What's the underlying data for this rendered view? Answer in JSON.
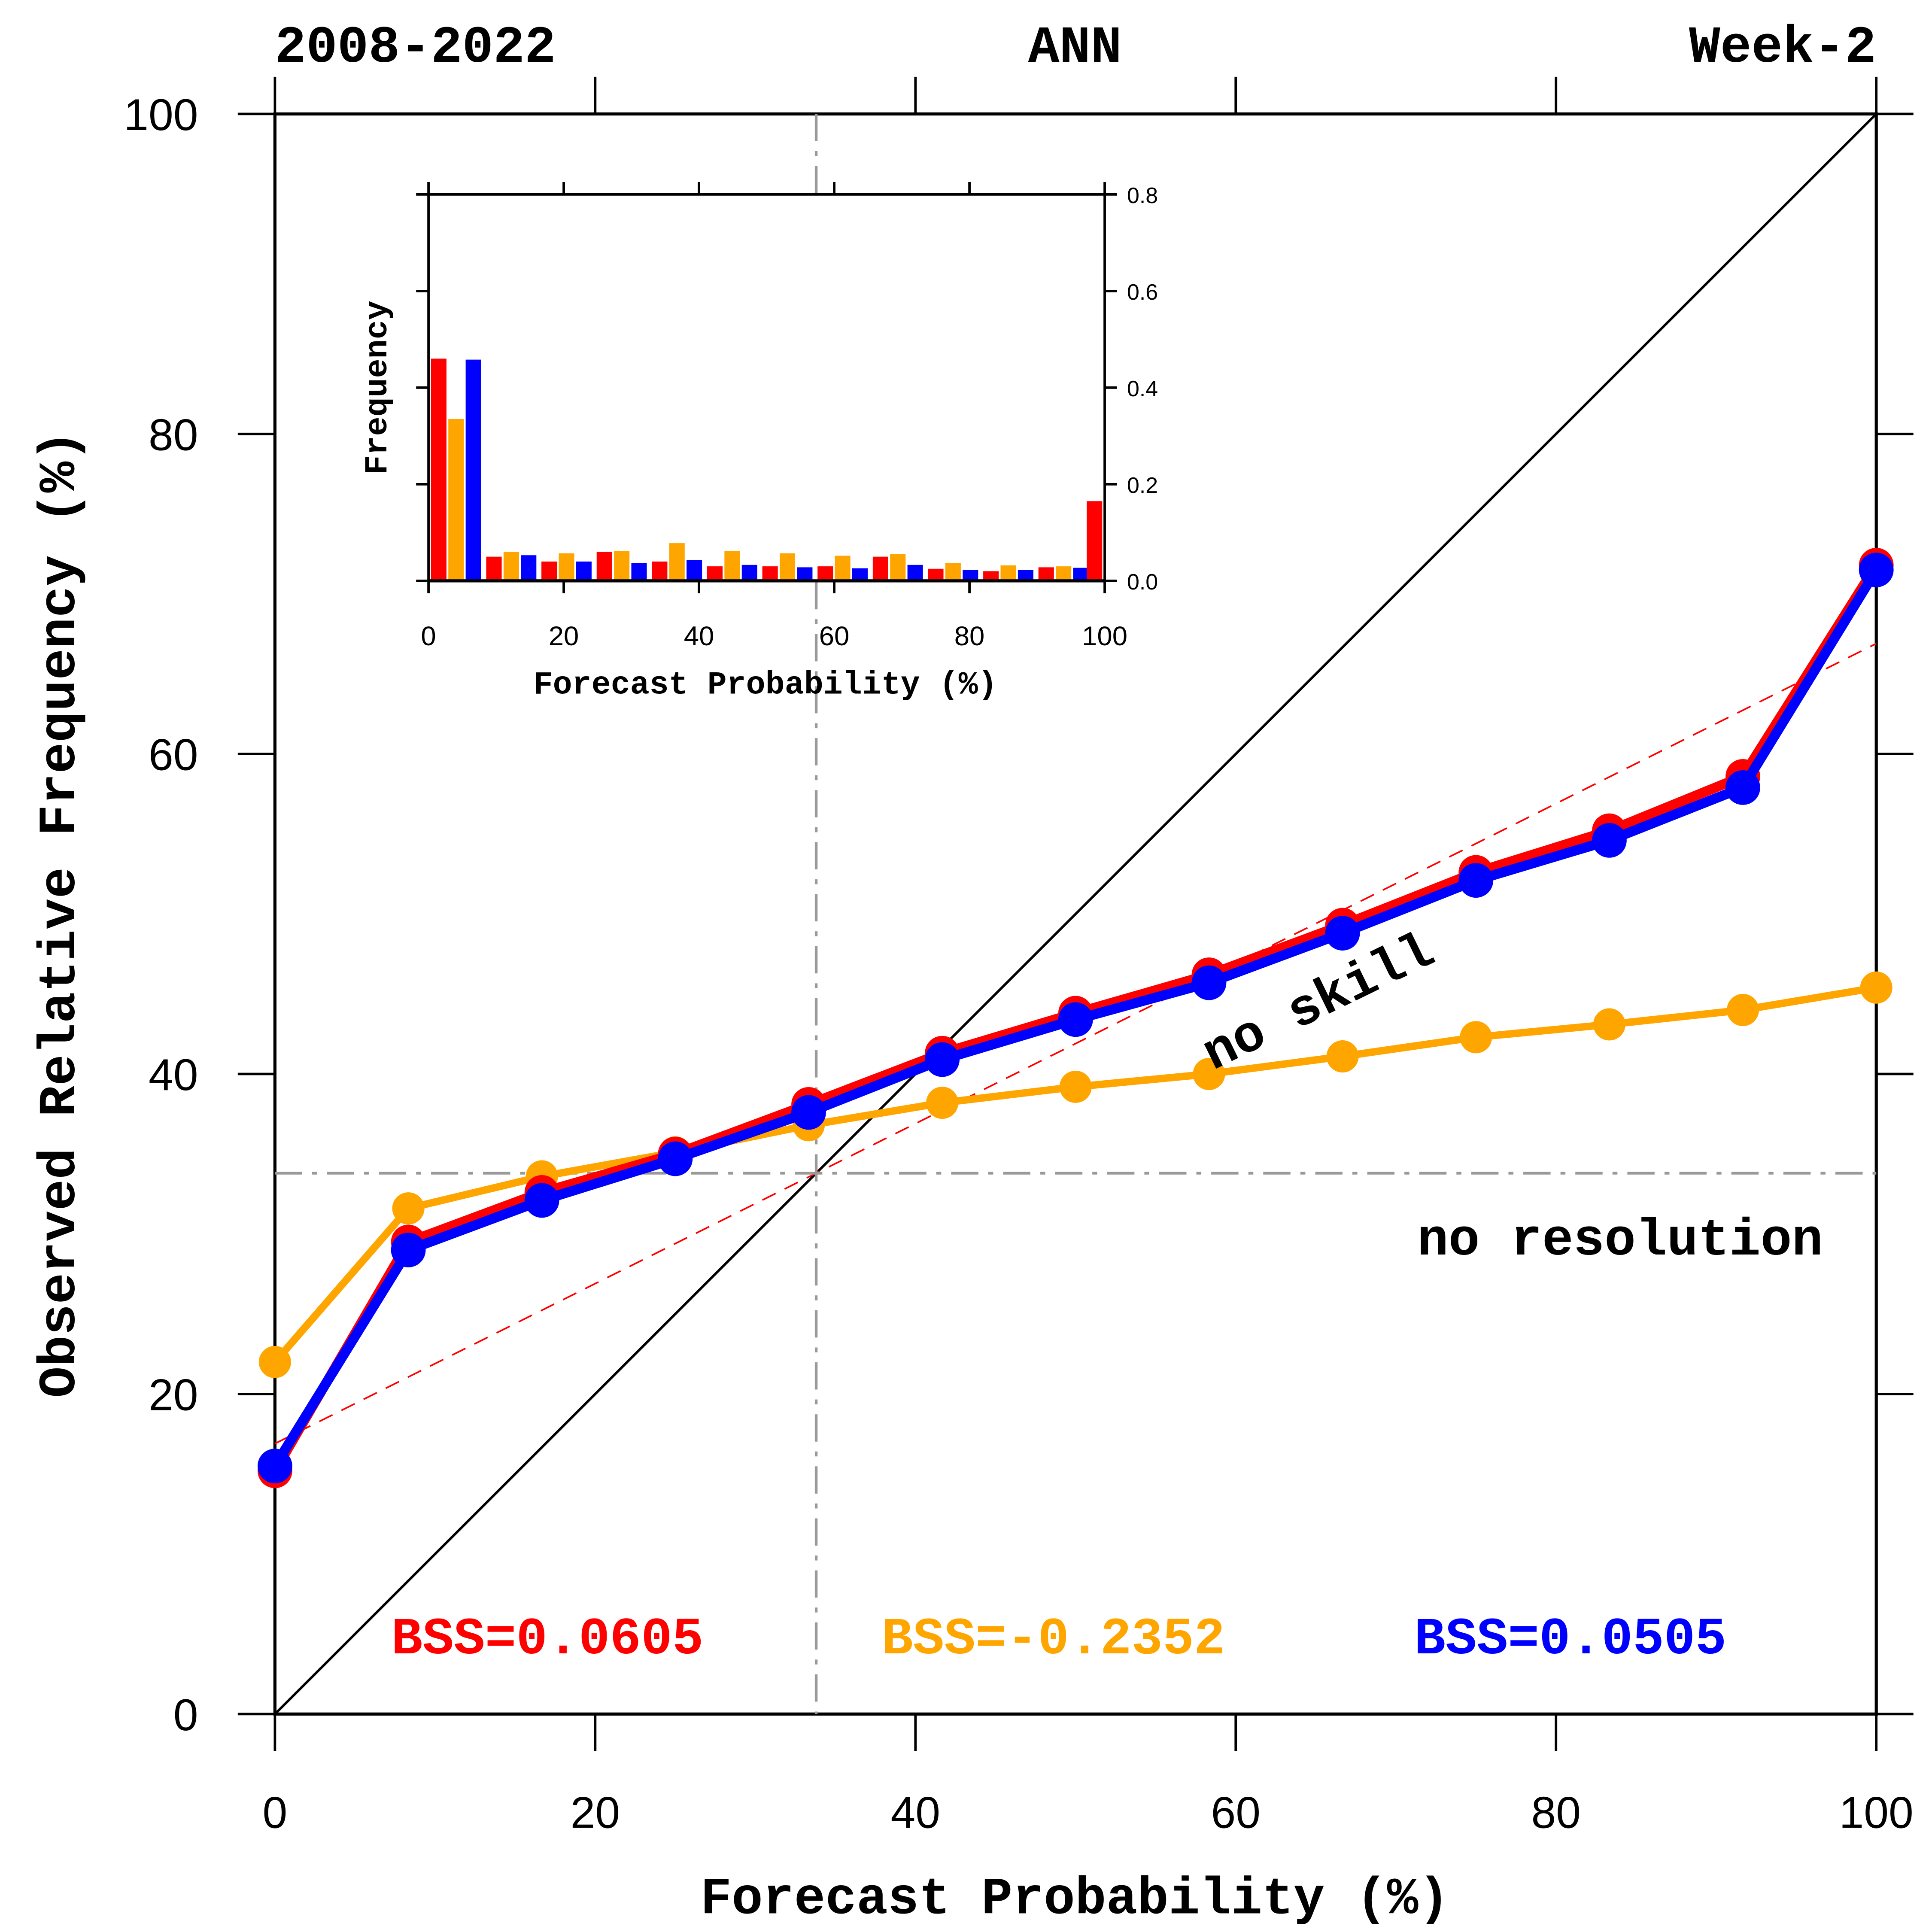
{
  "header": {
    "left": "2008-2022",
    "center": "ANN",
    "right": "Week-2"
  },
  "chart_data": [
    {
      "type": "line",
      "title": "Reliability Diagram",
      "xlabel": "Forecast Probability (%)",
      "ylabel": "Observed Relative Frequency (%)",
      "xlim": [
        0,
        100
      ],
      "ylim": [
        0,
        100
      ],
      "xticks": [
        "0",
        "20",
        "40",
        "60",
        "80",
        "100"
      ],
      "yticks": [
        "0",
        "20",
        "40",
        "60",
        "80",
        "100"
      ],
      "x": [
        0,
        8.33,
        16.67,
        25,
        33.33,
        41.67,
        50,
        58.33,
        66.67,
        75,
        83.33,
        91.67,
        100
      ],
      "series": [
        {
          "name": "red",
          "color": "#ff0000",
          "bss_label": "BSS=0.0605",
          "values": [
            15.2,
            29.5,
            32.6,
            35.0,
            38.1,
            41.3,
            43.8,
            46.2,
            49.3,
            52.6,
            55.2,
            58.6,
            71.8
          ]
        },
        {
          "name": "orange",
          "color": "#ffa500",
          "bss_label": "BSS=-0.2352",
          "values": [
            22.0,
            31.6,
            33.6,
            35.1,
            36.8,
            38.2,
            39.2,
            40.0,
            41.1,
            42.3,
            43.1,
            44.0,
            45.4
          ]
        },
        {
          "name": "blue",
          "color": "#0000ff",
          "bss_label": "BSS=0.0505",
          "values": [
            15.5,
            29.0,
            32.1,
            34.7,
            37.6,
            40.9,
            43.4,
            45.7,
            48.8,
            52.1,
            54.6,
            57.9,
            71.5
          ]
        }
      ],
      "reference_lines": {
        "perfect": {
          "from": [
            0,
            0
          ],
          "to": [
            100,
            100
          ],
          "color": "#000000"
        },
        "climatology": 33.8,
        "no_skill": {
          "from": [
            0,
            16.9
          ],
          "to": [
            100,
            66.9
          ],
          "color": "#ff0000"
        }
      },
      "annotations": {
        "no_skill": "no skill",
        "no_resolution": "no resolution"
      }
    },
    {
      "type": "bar",
      "title": "Inset Histogram",
      "xlabel": "Forecast Probability (%)",
      "ylabel": "Frequency",
      "xlim": [
        0,
        100
      ],
      "ylim": [
        0,
        0.8
      ],
      "xticks": [
        "0",
        "20",
        "40",
        "60",
        "80",
        "100"
      ],
      "yticks": [
        "0.0",
        "0.2",
        "0.4",
        "0.6",
        "0.8"
      ],
      "categories": [
        0,
        8.33,
        16.67,
        25,
        33.33,
        41.67,
        50,
        58.33,
        66.67,
        75,
        83.33,
        91.67,
        100
      ],
      "series": [
        {
          "name": "red",
          "color": "#ff0000",
          "values": [
            0.46,
            0.05,
            0.04,
            0.06,
            0.04,
            0.03,
            0.03,
            0.03,
            0.05,
            0.025,
            0.02,
            0.028,
            0.165
          ]
        },
        {
          "name": "orange",
          "color": "#ffa500",
          "values": [
            0.335,
            0.06,
            0.057,
            0.062,
            0.078,
            0.062,
            0.057,
            0.052,
            0.055,
            0.037,
            0.032,
            0.03,
            0.0
          ]
        },
        {
          "name": "blue",
          "color": "#0000ff",
          "values": [
            0.458,
            0.053,
            0.04,
            0.037,
            0.043,
            0.033,
            0.028,
            0.026,
            0.033,
            0.023,
            0.023,
            0.027,
            0.0
          ]
        }
      ]
    }
  ]
}
